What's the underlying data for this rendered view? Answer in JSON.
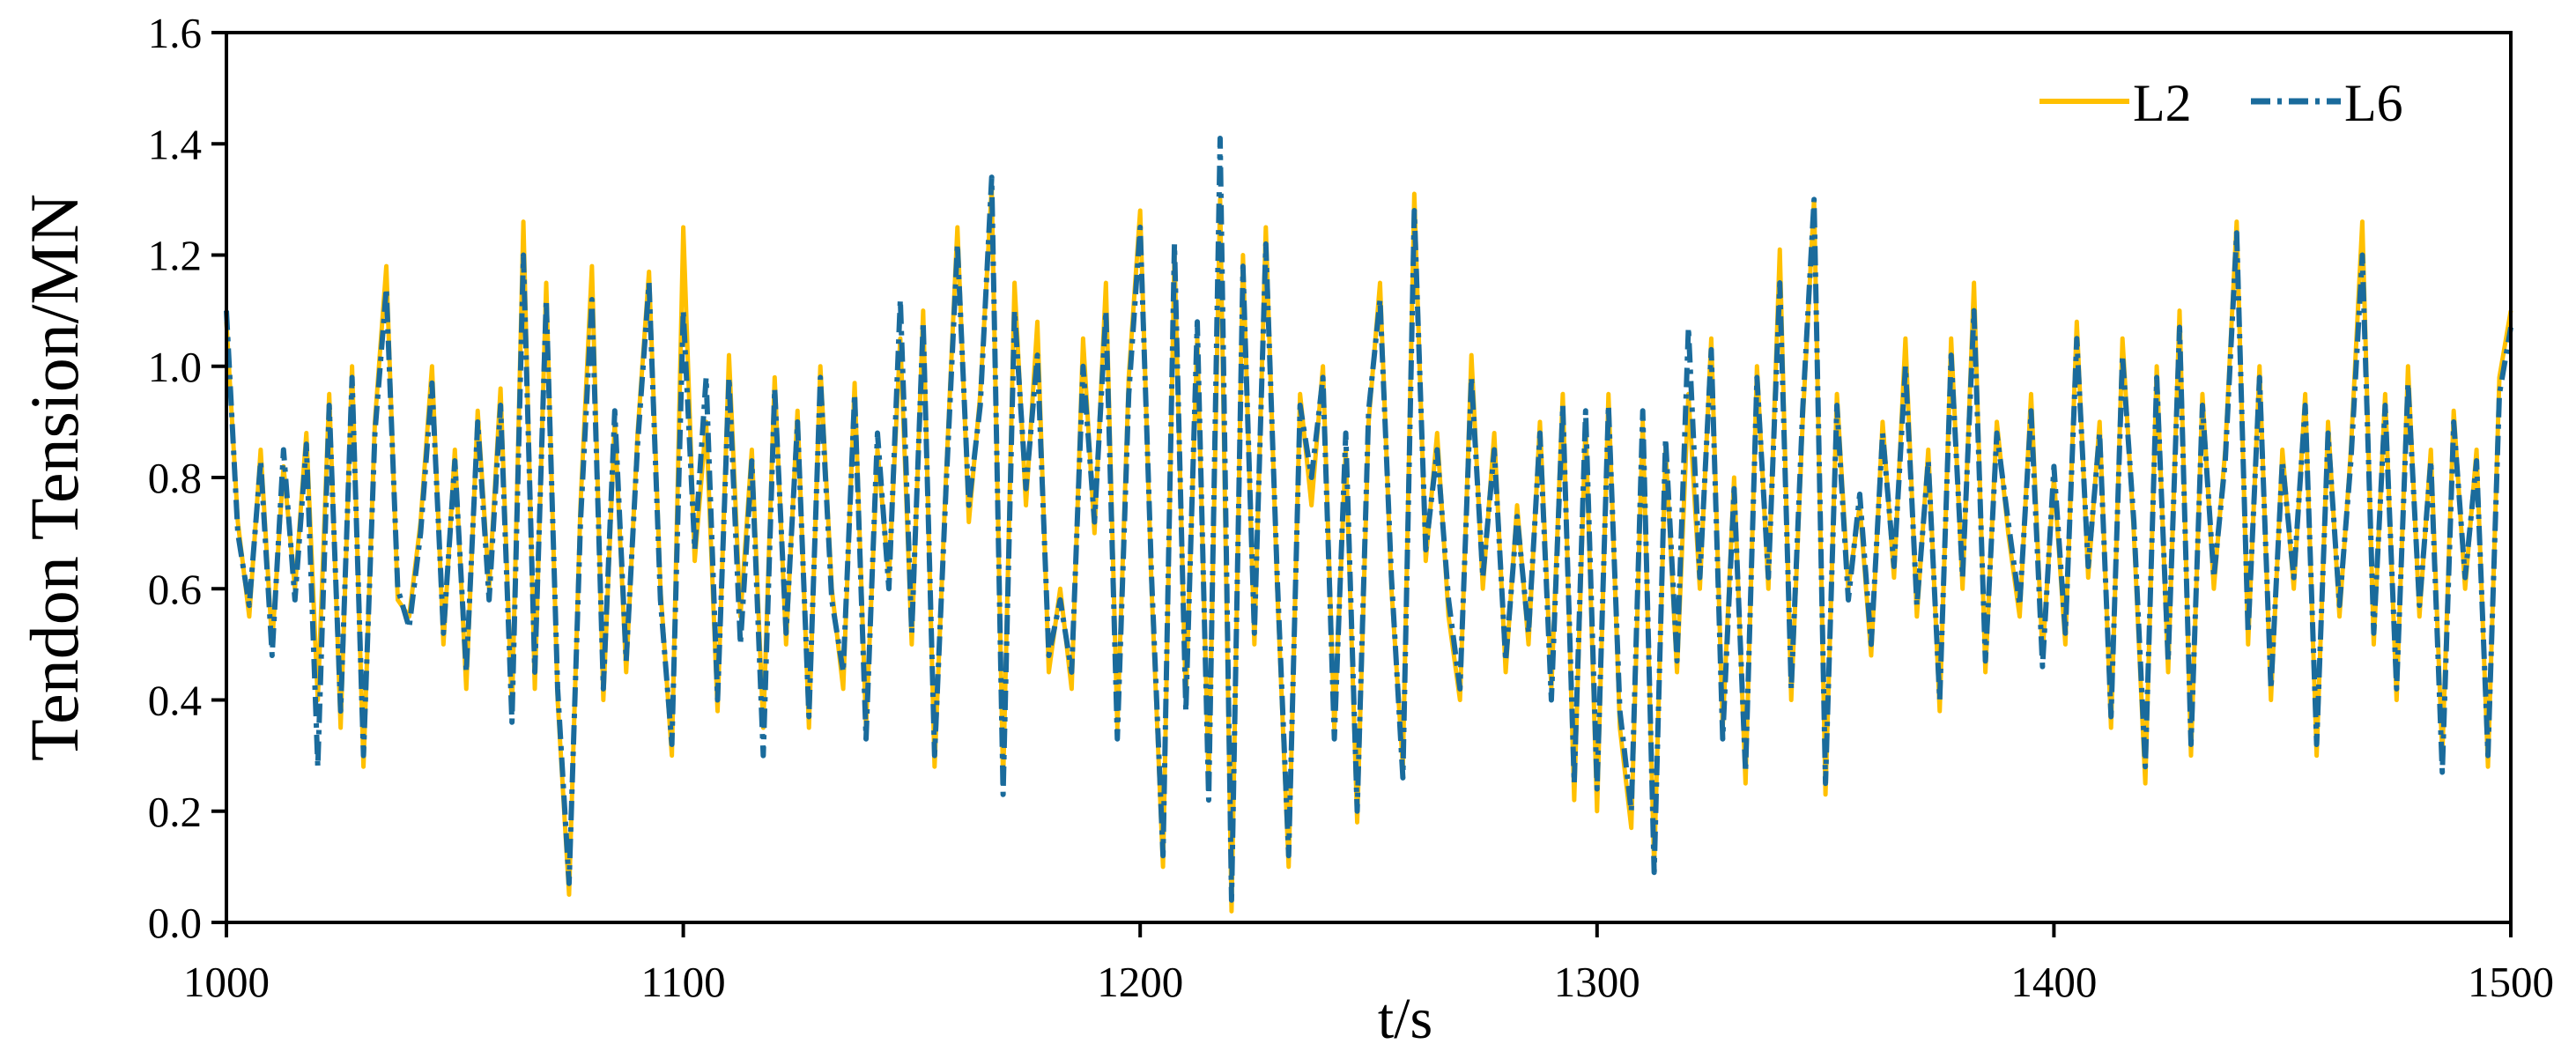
{
  "chart_data": {
    "type": "line",
    "x_label": "t/s",
    "y_label": "Tendon Tension/MN",
    "x": [
      1000,
      1002.5,
      1005,
      1007.5,
      1010,
      1012.5,
      1015,
      1017.5,
      1020,
      1022.5,
      1025,
      1027.5,
      1030,
      1032.5,
      1035,
      1037.5,
      1040,
      1042.5,
      1045,
      1047.5,
      1050,
      1052.5,
      1055,
      1057.5,
      1060,
      1062.5,
      1065,
      1067.5,
      1070,
      1072.5,
      1075,
      1077.5,
      1080,
      1082.5,
      1085,
      1087.5,
      1090,
      1092.5,
      1095,
      1097.5,
      1100,
      1102.5,
      1105,
      1107.5,
      1110,
      1112.5,
      1115,
      1117.5,
      1120,
      1122.5,
      1125,
      1127.5,
      1130,
      1132.5,
      1135,
      1137.5,
      1140,
      1142.5,
      1145,
      1147.5,
      1150,
      1152.5,
      1155,
      1157.5,
      1160,
      1162.5,
      1165,
      1167.5,
      1170,
      1172.5,
      1175,
      1177.5,
      1180,
      1182.5,
      1185,
      1187.5,
      1190,
      1192.5,
      1195,
      1197.5,
      1200,
      1202.5,
      1205,
      1207.5,
      1210,
      1212.5,
      1215,
      1217.5,
      1220,
      1222.5,
      1225,
      1227.5,
      1230,
      1232.5,
      1235,
      1237.5,
      1240,
      1242.5,
      1245,
      1247.5,
      1250,
      1252.5,
      1255,
      1257.5,
      1260,
      1262.5,
      1265,
      1267.5,
      1270,
      1272.5,
      1275,
      1277.5,
      1280,
      1282.5,
      1285,
      1287.5,
      1290,
      1292.5,
      1295,
      1297.5,
      1300,
      1302.5,
      1305,
      1307.5,
      1310,
      1312.5,
      1315,
      1317.5,
      1320,
      1322.5,
      1325,
      1327.5,
      1330,
      1332.5,
      1335,
      1337.5,
      1340,
      1342.5,
      1345,
      1347.5,
      1350,
      1352.5,
      1355,
      1357.5,
      1360,
      1362.5,
      1365,
      1367.5,
      1370,
      1372.5,
      1375,
      1377.5,
      1380,
      1382.5,
      1385,
      1387.5,
      1390,
      1392.5,
      1395,
      1397.5,
      1400,
      1402.5,
      1405,
      1407.5,
      1410,
      1412.5,
      1415,
      1417.5,
      1420,
      1422.5,
      1425,
      1427.5,
      1430,
      1432.5,
      1435,
      1437.5,
      1440,
      1442.5,
      1445,
      1447.5,
      1450,
      1452.5,
      1455,
      1457.5,
      1460,
      1462.5,
      1465,
      1467.5,
      1470,
      1472.5,
      1475,
      1477.5,
      1480,
      1482.5,
      1485,
      1487.5,
      1490,
      1492.5,
      1495,
      1497.5,
      1500
    ],
    "series": [
      {
        "name": "L2",
        "color": "#ffc000",
        "dash": "solid",
        "values": [
          1.08,
          0.72,
          0.55,
          0.85,
          0.5,
          0.82,
          0.6,
          0.88,
          0.4,
          0.95,
          0.35,
          1.0,
          0.28,
          0.9,
          1.18,
          0.58,
          0.55,
          0.72,
          1.0,
          0.5,
          0.85,
          0.42,
          0.92,
          0.6,
          0.96,
          0.38,
          1.26,
          0.42,
          1.15,
          0.4,
          0.05,
          0.75,
          1.18,
          0.4,
          0.9,
          0.45,
          0.88,
          1.17,
          0.6,
          0.3,
          1.25,
          0.65,
          0.9,
          0.38,
          1.02,
          0.55,
          0.85,
          0.35,
          0.98,
          0.5,
          0.92,
          0.35,
          1.0,
          0.6,
          0.42,
          0.97,
          0.35,
          0.85,
          0.62,
          1.05,
          0.5,
          1.1,
          0.28,
          0.8,
          1.25,
          0.72,
          0.95,
          1.32,
          0.25,
          1.15,
          0.75,
          1.08,
          0.45,
          0.6,
          0.42,
          1.05,
          0.7,
          1.15,
          0.35,
          0.98,
          1.28,
          0.6,
          0.1,
          1.2,
          0.4,
          1.05,
          0.25,
          1.3,
          0.02,
          1.2,
          0.5,
          1.25,
          0.6,
          0.1,
          0.95,
          0.75,
          1.0,
          0.35,
          0.85,
          0.18,
          0.9,
          1.15,
          0.6,
          0.28,
          1.31,
          0.65,
          0.88,
          0.55,
          0.4,
          1.02,
          0.6,
          0.88,
          0.45,
          0.75,
          0.5,
          0.9,
          0.42,
          0.95,
          0.22,
          0.9,
          0.2,
          0.95,
          0.35,
          0.17,
          0.9,
          0.1,
          0.85,
          0.45,
          0.95,
          0.6,
          1.05,
          0.35,
          0.8,
          0.25,
          1.0,
          0.6,
          1.21,
          0.4,
          0.9,
          1.3,
          0.23,
          0.95,
          0.6,
          0.75,
          0.48,
          0.9,
          0.62,
          1.05,
          0.55,
          0.85,
          0.38,
          1.05,
          0.6,
          1.15,
          0.45,
          0.9,
          0.7,
          0.55,
          0.95,
          0.48,
          0.8,
          0.5,
          1.08,
          0.62,
          0.9,
          0.35,
          1.05,
          0.7,
          0.25,
          1.0,
          0.45,
          1.1,
          0.3,
          0.95,
          0.6,
          0.85,
          1.26,
          0.5,
          1.0,
          0.4,
          0.85,
          0.6,
          0.95,
          0.3,
          0.9,
          0.55,
          0.85,
          1.26,
          0.5,
          0.95,
          0.4,
          1.0,
          0.55,
          0.85,
          0.3,
          0.92,
          0.6,
          0.85,
          0.28,
          0.98,
          1.1
        ]
      },
      {
        "name": "L6",
        "color": "#1a6b9c",
        "dash": "dash-dot",
        "values": [
          1.1,
          0.7,
          0.57,
          0.83,
          0.48,
          0.85,
          0.58,
          0.86,
          0.28,
          0.93,
          0.38,
          0.98,
          0.3,
          0.88,
          1.14,
          0.6,
          0.53,
          0.7,
          0.97,
          0.52,
          0.83,
          0.45,
          0.9,
          0.58,
          0.93,
          0.36,
          1.2,
          0.45,
          1.12,
          0.42,
          0.07,
          0.72,
          1.12,
          0.42,
          0.92,
          0.47,
          0.86,
          1.15,
          0.58,
          0.32,
          1.1,
          0.67,
          0.98,
          0.4,
          0.98,
          0.5,
          0.83,
          0.3,
          0.96,
          0.52,
          0.9,
          0.37,
          0.98,
          0.58,
          0.45,
          0.95,
          0.33,
          0.88,
          0.6,
          1.12,
          0.52,
          1.08,
          0.3,
          0.78,
          1.22,
          0.75,
          0.93,
          1.34,
          0.23,
          1.1,
          0.78,
          1.02,
          0.48,
          0.58,
          0.45,
          1.0,
          0.72,
          1.1,
          0.33,
          0.95,
          1.25,
          0.62,
          0.12,
          1.22,
          0.38,
          1.08,
          0.22,
          1.41,
          0.04,
          1.18,
          0.52,
          1.22,
          0.62,
          0.12,
          0.93,
          0.8,
          0.98,
          0.33,
          0.88,
          0.2,
          0.92,
          1.12,
          0.62,
          0.26,
          1.28,
          0.67,
          0.85,
          0.58,
          0.42,
          0.98,
          0.62,
          0.85,
          0.47,
          0.73,
          0.52,
          0.88,
          0.4,
          0.93,
          0.25,
          0.92,
          0.24,
          0.93,
          0.38,
          0.2,
          0.92,
          0.09,
          0.87,
          0.47,
          1.07,
          0.62,
          1.03,
          0.33,
          0.78,
          0.27,
          0.98,
          0.62,
          1.15,
          0.42,
          0.92,
          1.3,
          0.25,
          0.93,
          0.58,
          0.77,
          0.5,
          0.88,
          0.64,
          1.0,
          0.57,
          0.83,
          0.4,
          1.02,
          0.62,
          1.1,
          0.47,
          0.88,
          0.72,
          0.57,
          0.92,
          0.46,
          0.82,
          0.52,
          1.05,
          0.64,
          0.88,
          0.37,
          1.02,
          0.72,
          0.28,
          0.98,
          0.47,
          1.07,
          0.32,
          0.93,
          0.62,
          0.83,
          1.24,
          0.52,
          0.98,
          0.42,
          0.83,
          0.62,
          0.93,
          0.32,
          0.88,
          0.57,
          0.83,
          1.2,
          0.52,
          0.93,
          0.42,
          0.97,
          0.57,
          0.83,
          0.27,
          0.9,
          0.62,
          0.83,
          0.3,
          0.95,
          1.07
        ]
      }
    ],
    "xlim": [
      1000,
      1500
    ],
    "xticks": [
      1000,
      1100,
      1200,
      1300,
      1400,
      1500
    ],
    "ylim": [
      0,
      1.6
    ],
    "yticks": [
      {
        "value": 0,
        "label": "0.0"
      },
      0.2,
      0.4,
      0.6,
      0.8,
      {
        "value": 1,
        "label": "1.0"
      },
      1.2,
      1.4,
      1.6
    ],
    "legend": "upper right"
  }
}
